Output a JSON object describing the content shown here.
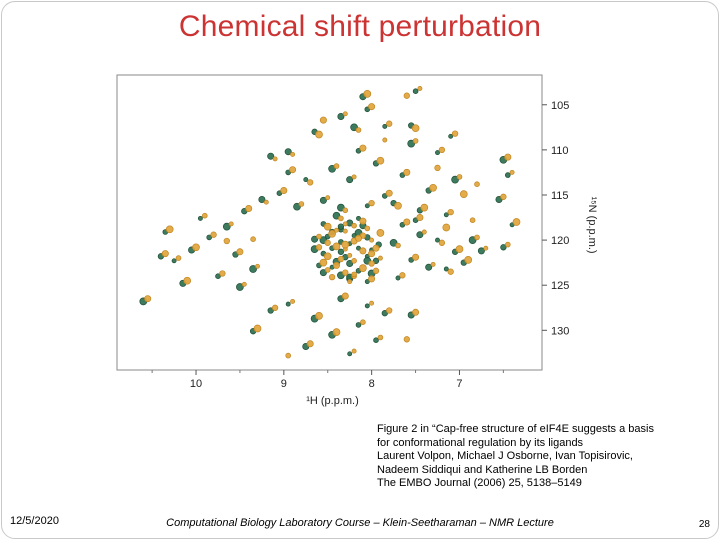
{
  "slide": {
    "title": "Chemical shift perturbation",
    "title_color": "#cc3333",
    "date": "12/5/2020",
    "footer": "Computational Biology Laboratory Course – Klein-Seetharaman – NMR Lecture",
    "page_number": "28"
  },
  "caption": {
    "lines": [
      "Figure 2 in “Cap-free structure of eIF4E suggests a basis",
      "for conformational regulation by its ligands",
      "Laurent Volpon, Michael J Osborne, Ivan Topisirovic,",
      "Nadeem Siddiqui and Katherine LB Borden",
      "The EMBO Journal (2006) 25, 5138–5149"
    ]
  },
  "chart_data": {
    "type": "scatter",
    "title": "",
    "xlabel": "¹H (p.p.m.)",
    "ylabel": "¹⁵N (p.p.m.)",
    "x_ticks": [
      10,
      9,
      8,
      7
    ],
    "x_minor_ticks": [
      10.5,
      9.5,
      8.5,
      7.5,
      6.5
    ],
    "y_ticks": [
      105,
      110,
      115,
      120,
      125,
      130
    ],
    "x_range": [
      10.9,
      6.06
    ],
    "y_range": [
      101.7,
      134.4
    ],
    "grid": false,
    "legend": "none",
    "axis_color": "#8a8a8a",
    "series": [
      {
        "name": "green-peaks",
        "color": "#2e7050",
        "stroke": "#1e4f38",
        "points": [
          [
            8.25,
            120.4
          ],
          [
            8.35,
            121.3
          ],
          [
            8.15,
            119.2
          ],
          [
            8.45,
            120.9
          ],
          [
            8.25,
            122.6
          ],
          [
            8.05,
            121.8
          ],
          [
            8.35,
            118.8
          ],
          [
            8.55,
            120
          ],
          [
            8.15,
            123.4
          ],
          [
            8.25,
            118.1
          ],
          [
            8.45,
            123
          ],
          [
            8.05,
            119.7
          ],
          [
            8.35,
            123.9
          ],
          [
            8.55,
            121.5
          ],
          [
            8.25,
            124.3
          ],
          [
            8.15,
            120.9
          ],
          [
            8.45,
            119.1
          ],
          [
            8.05,
            122.3
          ],
          [
            8.35,
            120.2
          ],
          [
            8.55,
            123.6
          ],
          [
            8.2,
            119.5
          ],
          [
            8.3,
            121.9
          ],
          [
            8.4,
            122.4
          ],
          [
            8.5,
            119.6
          ],
          [
            8.1,
            118.4
          ],
          [
            8,
            121.1
          ],
          [
            7.95,
            122.3
          ],
          [
            8.65,
            121
          ],
          [
            8.6,
            122.8
          ],
          [
            8.25,
            124.1
          ],
          [
            8.15,
            117.6
          ],
          [
            8.35,
            118.5
          ],
          [
            8,
            123.7
          ],
          [
            8.55,
            118.2
          ],
          [
            8.65,
            119.9
          ],
          [
            8.05,
            124.6
          ],
          [
            7.92,
            120.5
          ],
          [
            8.4,
            117.3
          ],
          [
            8.05,
            105.5
          ],
          [
            8.35,
            106.3
          ],
          [
            7.85,
            107.4
          ],
          [
            8.65,
            108
          ],
          [
            7.55,
            109.3
          ],
          [
            8.15,
            110.1
          ],
          [
            8.95,
            110.2
          ],
          [
            7.25,
            110.3
          ],
          [
            7.95,
            111.5
          ],
          [
            8.45,
            112.1
          ],
          [
            7.65,
            112.8
          ],
          [
            8.25,
            113.3
          ],
          [
            8.75,
            113.3
          ],
          [
            7.35,
            114.5
          ],
          [
            7.05,
            113.3
          ],
          [
            7.85,
            115.1
          ],
          [
            8.55,
            115.6
          ],
          [
            8.05,
            116.2
          ],
          [
            7.45,
            116.7
          ],
          [
            8.85,
            116.3
          ],
          [
            9.05,
            114.8
          ],
          [
            9.25,
            115.5
          ],
          [
            7.15,
            117.2
          ],
          [
            7.75,
            115.9
          ],
          [
            8.35,
            116.4
          ],
          [
            8.95,
            112.5
          ],
          [
            9.15,
            110.7
          ],
          [
            7.1,
            108.5
          ],
          [
            7.55,
            107.3
          ],
          [
            8.2,
            107.5
          ],
          [
            7.65,
            118.3
          ],
          [
            7.45,
            119.4
          ],
          [
            7.25,
            120
          ],
          [
            7.05,
            121.3
          ],
          [
            6.85,
            120
          ],
          [
            7.55,
            122.2
          ],
          [
            7.35,
            123
          ],
          [
            7.15,
            123.2
          ],
          [
            6.95,
            122.5
          ],
          [
            7.75,
            120.3
          ],
          [
            7.5,
            117.8
          ],
          [
            6.75,
            121.2
          ],
          [
            7.7,
            124.2
          ],
          [
            9.45,
            116.8
          ],
          [
            9.65,
            118.5
          ],
          [
            9.85,
            119.7
          ],
          [
            10.05,
            121.1
          ],
          [
            10.25,
            122.3
          ],
          [
            9.55,
            121.6
          ],
          [
            9.35,
            123.2
          ],
          [
            9.75,
            124
          ],
          [
            10.15,
            124.8
          ],
          [
            9.95,
            117.6
          ],
          [
            10.4,
            121.8
          ],
          [
            9.5,
            125.2
          ],
          [
            10.35,
            119.1
          ],
          [
            8.35,
            126.5
          ],
          [
            8.05,
            127.3
          ],
          [
            7.85,
            128.1
          ],
          [
            8.65,
            128.7
          ],
          [
            8.15,
            129.4
          ],
          [
            7.55,
            128.3
          ],
          [
            8.95,
            127.1
          ],
          [
            9.15,
            127.8
          ],
          [
            8.45,
            130.5
          ],
          [
            7.95,
            131.1
          ],
          [
            8.75,
            131.8
          ],
          [
            8.25,
            132.6
          ],
          [
            9.35,
            130.1
          ],
          [
            6.5,
            111.1
          ],
          [
            6.45,
            112.8
          ],
          [
            6.55,
            115.5
          ],
          [
            6.4,
            118.3
          ],
          [
            6.5,
            120.8
          ],
          [
            10.6,
            126.8
          ],
          [
            7.5,
            103.5
          ],
          [
            8.1,
            104.1
          ]
        ]
      },
      {
        "name": "orange-peaks",
        "color": "#e2a43c",
        "stroke": "#c08620",
        "points": [
          [
            8.2,
            120.1
          ],
          [
            8.3,
            121
          ],
          [
            8.1,
            119.5
          ],
          [
            8.4,
            120.7
          ],
          [
            8.2,
            122.3
          ],
          [
            8,
            121.5
          ],
          [
            8.3,
            119
          ],
          [
            8.5,
            120.3
          ],
          [
            8.1,
            123.1
          ],
          [
            8.2,
            118.4
          ],
          [
            8.4,
            122.8
          ],
          [
            8,
            120
          ],
          [
            8.3,
            123.6
          ],
          [
            8.5,
            121.8
          ],
          [
            8.2,
            124
          ],
          [
            8.1,
            121.2
          ],
          [
            8.4,
            118.9
          ],
          [
            8,
            122.6
          ],
          [
            8.3,
            120.5
          ],
          [
            8.5,
            123.3
          ],
          [
            8.15,
            119.8
          ],
          [
            8.25,
            121.7
          ],
          [
            8.35,
            122.1
          ],
          [
            8.45,
            119.3
          ],
          [
            8.05,
            118.7
          ],
          [
            7.95,
            120.9
          ],
          [
            7.9,
            122
          ],
          [
            8.6,
            120.8
          ],
          [
            8.55,
            122.5
          ],
          [
            8.2,
            123.8
          ],
          [
            8.1,
            117.9
          ],
          [
            8.3,
            118.2
          ],
          [
            7.95,
            123.4
          ],
          [
            8.5,
            118.5
          ],
          [
            8.6,
            119.6
          ],
          [
            8,
            124.3
          ],
          [
            8.25,
            124.6
          ],
          [
            8.45,
            124.1
          ],
          [
            7.9,
            119.2
          ],
          [
            8.35,
            117.6
          ],
          [
            8,
            105.2
          ],
          [
            8.3,
            106
          ],
          [
            7.8,
            107.1
          ],
          [
            8.6,
            108.3
          ],
          [
            7.5,
            109
          ],
          [
            8.1,
            109.8
          ],
          [
            8.9,
            110.5
          ],
          [
            7.2,
            110
          ],
          [
            7.9,
            111.2
          ],
          [
            8.4,
            111.8
          ],
          [
            7.6,
            112.5
          ],
          [
            8.2,
            113
          ],
          [
            8.7,
            113.6
          ],
          [
            7.3,
            114.2
          ],
          [
            7,
            113
          ],
          [
            7.8,
            114.8
          ],
          [
            8.5,
            115.3
          ],
          [
            8,
            115.9
          ],
          [
            7.4,
            116.4
          ],
          [
            8.8,
            116
          ],
          [
            9,
            114.5
          ],
          [
            9.2,
            115.8
          ],
          [
            7.1,
            116.9
          ],
          [
            7.7,
            116.2
          ],
          [
            8.3,
            116.7
          ],
          [
            8.9,
            112.2
          ],
          [
            9.1,
            111
          ],
          [
            7.05,
            108.2
          ],
          [
            7.5,
            107.6
          ],
          [
            8.15,
            107.8
          ],
          [
            8.55,
            106.7
          ],
          [
            7.85,
            108.9
          ],
          [
            7.25,
            112
          ],
          [
            6.95,
            114.9
          ],
          [
            6.8,
            113.8
          ],
          [
            7.6,
            118
          ],
          [
            7.4,
            119.1
          ],
          [
            7.2,
            120.3
          ],
          [
            7,
            121
          ],
          [
            6.8,
            119.7
          ],
          [
            7.5,
            121.9
          ],
          [
            7.3,
            122.7
          ],
          [
            7.1,
            123.5
          ],
          [
            6.9,
            122.2
          ],
          [
            7.7,
            120.6
          ],
          [
            7.45,
            117.5
          ],
          [
            6.7,
            120.9
          ],
          [
            7.65,
            123.9
          ],
          [
            7.15,
            118.6
          ],
          [
            6.85,
            117.8
          ],
          [
            9.4,
            116.5
          ],
          [
            9.6,
            118.2
          ],
          [
            9.8,
            119.4
          ],
          [
            10,
            120.8
          ],
          [
            10.2,
            122
          ],
          [
            9.5,
            121.3
          ],
          [
            9.3,
            122.9
          ],
          [
            9.7,
            123.7
          ],
          [
            10.1,
            124.5
          ],
          [
            9.9,
            117.3
          ],
          [
            10.35,
            121.5
          ],
          [
            9.45,
            124.9
          ],
          [
            9.65,
            120.1
          ],
          [
            10.3,
            118.8
          ],
          [
            9.35,
            119.9
          ],
          [
            8.3,
            126.2
          ],
          [
            8,
            127
          ],
          [
            7.8,
            127.8
          ],
          [
            8.6,
            128.4
          ],
          [
            8.1,
            129.1
          ],
          [
            7.5,
            128
          ],
          [
            8.9,
            126.8
          ],
          [
            9.1,
            127.5
          ],
          [
            8.4,
            130.2
          ],
          [
            7.9,
            130.8
          ],
          [
            8.7,
            131.5
          ],
          [
            8.2,
            132.3
          ],
          [
            7.6,
            131
          ],
          [
            9.3,
            129.8
          ],
          [
            8.95,
            132.8
          ],
          [
            6.45,
            110.8
          ],
          [
            6.4,
            112.5
          ],
          [
            6.5,
            115.2
          ],
          [
            6.35,
            118
          ],
          [
            6.45,
            120.5
          ],
          [
            10.55,
            126.5
          ],
          [
            7.45,
            103.2
          ],
          [
            7.6,
            104
          ],
          [
            8.05,
            103.8
          ]
        ]
      }
    ]
  }
}
